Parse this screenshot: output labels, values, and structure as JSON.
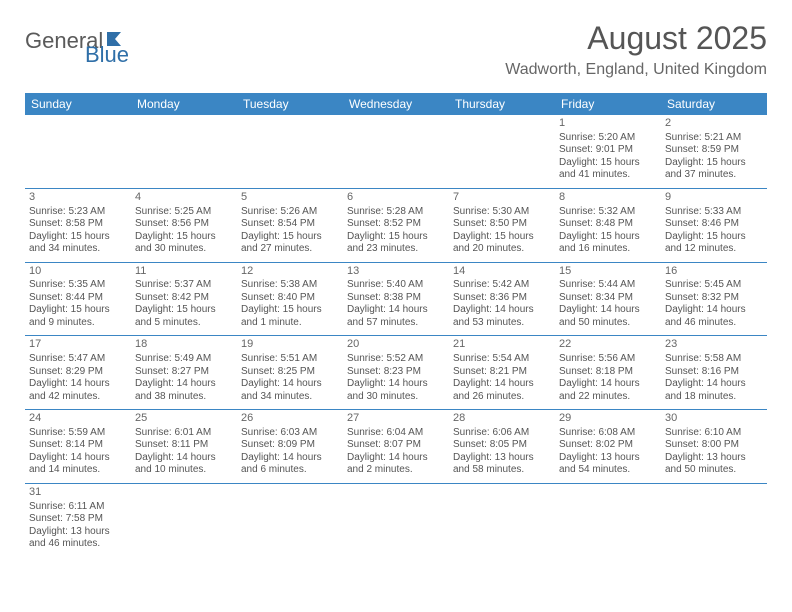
{
  "logo": {
    "part1": "General",
    "part2": "Blue"
  },
  "title": "August 2025",
  "location": "Wadworth, England, United Kingdom",
  "colors": {
    "header_bg": "#3b86c4",
    "header_text": "#ffffff",
    "border": "#3b86c4",
    "text": "#555555",
    "logo_gray": "#5a5a5a",
    "logo_blue": "#2f6fa8"
  },
  "weekdays": [
    "Sunday",
    "Monday",
    "Tuesday",
    "Wednesday",
    "Thursday",
    "Friday",
    "Saturday"
  ],
  "weeks": [
    [
      null,
      null,
      null,
      null,
      null,
      {
        "n": "1",
        "sr": "5:20 AM",
        "ss": "9:01 PM",
        "dl": "15 hours and 41 minutes."
      },
      {
        "n": "2",
        "sr": "5:21 AM",
        "ss": "8:59 PM",
        "dl": "15 hours and 37 minutes."
      }
    ],
    [
      {
        "n": "3",
        "sr": "5:23 AM",
        "ss": "8:58 PM",
        "dl": "15 hours and 34 minutes."
      },
      {
        "n": "4",
        "sr": "5:25 AM",
        "ss": "8:56 PM",
        "dl": "15 hours and 30 minutes."
      },
      {
        "n": "5",
        "sr": "5:26 AM",
        "ss": "8:54 PM",
        "dl": "15 hours and 27 minutes."
      },
      {
        "n": "6",
        "sr": "5:28 AM",
        "ss": "8:52 PM",
        "dl": "15 hours and 23 minutes."
      },
      {
        "n": "7",
        "sr": "5:30 AM",
        "ss": "8:50 PM",
        "dl": "15 hours and 20 minutes."
      },
      {
        "n": "8",
        "sr": "5:32 AM",
        "ss": "8:48 PM",
        "dl": "15 hours and 16 minutes."
      },
      {
        "n": "9",
        "sr": "5:33 AM",
        "ss": "8:46 PM",
        "dl": "15 hours and 12 minutes."
      }
    ],
    [
      {
        "n": "10",
        "sr": "5:35 AM",
        "ss": "8:44 PM",
        "dl": "15 hours and 9 minutes."
      },
      {
        "n": "11",
        "sr": "5:37 AM",
        "ss": "8:42 PM",
        "dl": "15 hours and 5 minutes."
      },
      {
        "n": "12",
        "sr": "5:38 AM",
        "ss": "8:40 PM",
        "dl": "15 hours and 1 minute."
      },
      {
        "n": "13",
        "sr": "5:40 AM",
        "ss": "8:38 PM",
        "dl": "14 hours and 57 minutes."
      },
      {
        "n": "14",
        "sr": "5:42 AM",
        "ss": "8:36 PM",
        "dl": "14 hours and 53 minutes."
      },
      {
        "n": "15",
        "sr": "5:44 AM",
        "ss": "8:34 PM",
        "dl": "14 hours and 50 minutes."
      },
      {
        "n": "16",
        "sr": "5:45 AM",
        "ss": "8:32 PM",
        "dl": "14 hours and 46 minutes."
      }
    ],
    [
      {
        "n": "17",
        "sr": "5:47 AM",
        "ss": "8:29 PM",
        "dl": "14 hours and 42 minutes."
      },
      {
        "n": "18",
        "sr": "5:49 AM",
        "ss": "8:27 PM",
        "dl": "14 hours and 38 minutes."
      },
      {
        "n": "19",
        "sr": "5:51 AM",
        "ss": "8:25 PM",
        "dl": "14 hours and 34 minutes."
      },
      {
        "n": "20",
        "sr": "5:52 AM",
        "ss": "8:23 PM",
        "dl": "14 hours and 30 minutes."
      },
      {
        "n": "21",
        "sr": "5:54 AM",
        "ss": "8:21 PM",
        "dl": "14 hours and 26 minutes."
      },
      {
        "n": "22",
        "sr": "5:56 AM",
        "ss": "8:18 PM",
        "dl": "14 hours and 22 minutes."
      },
      {
        "n": "23",
        "sr": "5:58 AM",
        "ss": "8:16 PM",
        "dl": "14 hours and 18 minutes."
      }
    ],
    [
      {
        "n": "24",
        "sr": "5:59 AM",
        "ss": "8:14 PM",
        "dl": "14 hours and 14 minutes."
      },
      {
        "n": "25",
        "sr": "6:01 AM",
        "ss": "8:11 PM",
        "dl": "14 hours and 10 minutes."
      },
      {
        "n": "26",
        "sr": "6:03 AM",
        "ss": "8:09 PM",
        "dl": "14 hours and 6 minutes."
      },
      {
        "n": "27",
        "sr": "6:04 AM",
        "ss": "8:07 PM",
        "dl": "14 hours and 2 minutes."
      },
      {
        "n": "28",
        "sr": "6:06 AM",
        "ss": "8:05 PM",
        "dl": "13 hours and 58 minutes."
      },
      {
        "n": "29",
        "sr": "6:08 AM",
        "ss": "8:02 PM",
        "dl": "13 hours and 54 minutes."
      },
      {
        "n": "30",
        "sr": "6:10 AM",
        "ss": "8:00 PM",
        "dl": "13 hours and 50 minutes."
      }
    ],
    [
      {
        "n": "31",
        "sr": "6:11 AM",
        "ss": "7:58 PM",
        "dl": "13 hours and 46 minutes."
      },
      null,
      null,
      null,
      null,
      null,
      null
    ]
  ],
  "labels": {
    "sunrise": "Sunrise:",
    "sunset": "Sunset:",
    "daylight": "Daylight:"
  }
}
